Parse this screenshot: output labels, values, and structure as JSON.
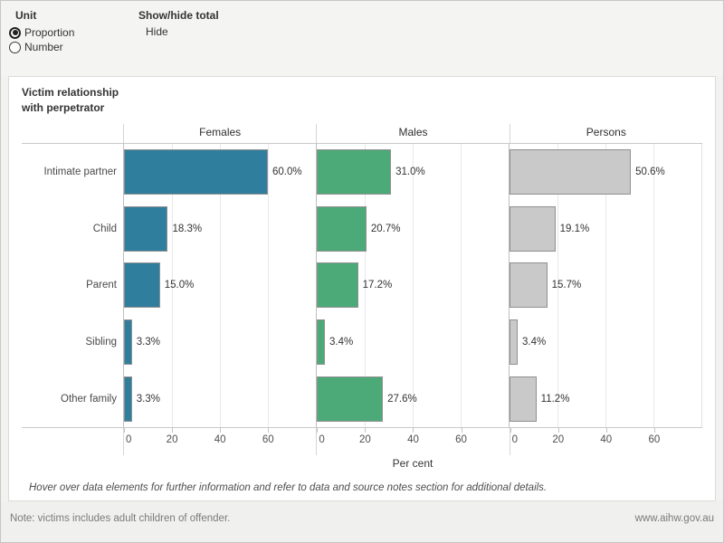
{
  "toolbar": {
    "unit_label": "Unit",
    "unit_options": [
      {
        "label": "Proportion",
        "selected": true
      },
      {
        "label": "Number",
        "selected": false
      }
    ],
    "showhide_label": "Show/hide total",
    "showhide_value": "Hide"
  },
  "chart_title": {
    "line1": "Victim relationship",
    "line2": "with perpetrator"
  },
  "chart_data": {
    "type": "bar",
    "orientation": "horizontal",
    "title": "Victim relationship with perpetrator",
    "categories": [
      "Intimate partner",
      "Child",
      "Parent",
      "Sibling",
      "Other family"
    ],
    "series": [
      {
        "name": "Females",
        "color": "#2f7e9d",
        "values": [
          60.0,
          18.3,
          15.0,
          3.3,
          3.3
        ]
      },
      {
        "name": "Males",
        "color": "#4caa78",
        "values": [
          31.0,
          20.7,
          17.2,
          3.4,
          27.6
        ]
      },
      {
        "name": "Persons",
        "color": "#c9c9c9",
        "values": [
          50.6,
          19.1,
          15.7,
          3.4,
          11.2
        ]
      }
    ],
    "value_labels": [
      [
        "60.0%",
        "18.3%",
        "15.0%",
        "3.3%",
        "3.3%"
      ],
      [
        "31.0%",
        "20.7%",
        "17.2%",
        "3.4%",
        "27.6%"
      ],
      [
        "50.6%",
        "19.1%",
        "15.7%",
        "3.4%",
        "11.2%"
      ]
    ],
    "xlabel": "Per cent",
    "ticks": [
      0,
      20,
      40,
      60
    ],
    "axis_max": 80,
    "grid": true,
    "bar_border_color": "#8f8f8f",
    "legend_position": "column-headers"
  },
  "footnote": "Hover over data elements for further information and refer to data and source notes section for additional details.",
  "footer": {
    "note": "Note: victims includes adult children of offender.",
    "url": "www.aihw.gov.au"
  }
}
